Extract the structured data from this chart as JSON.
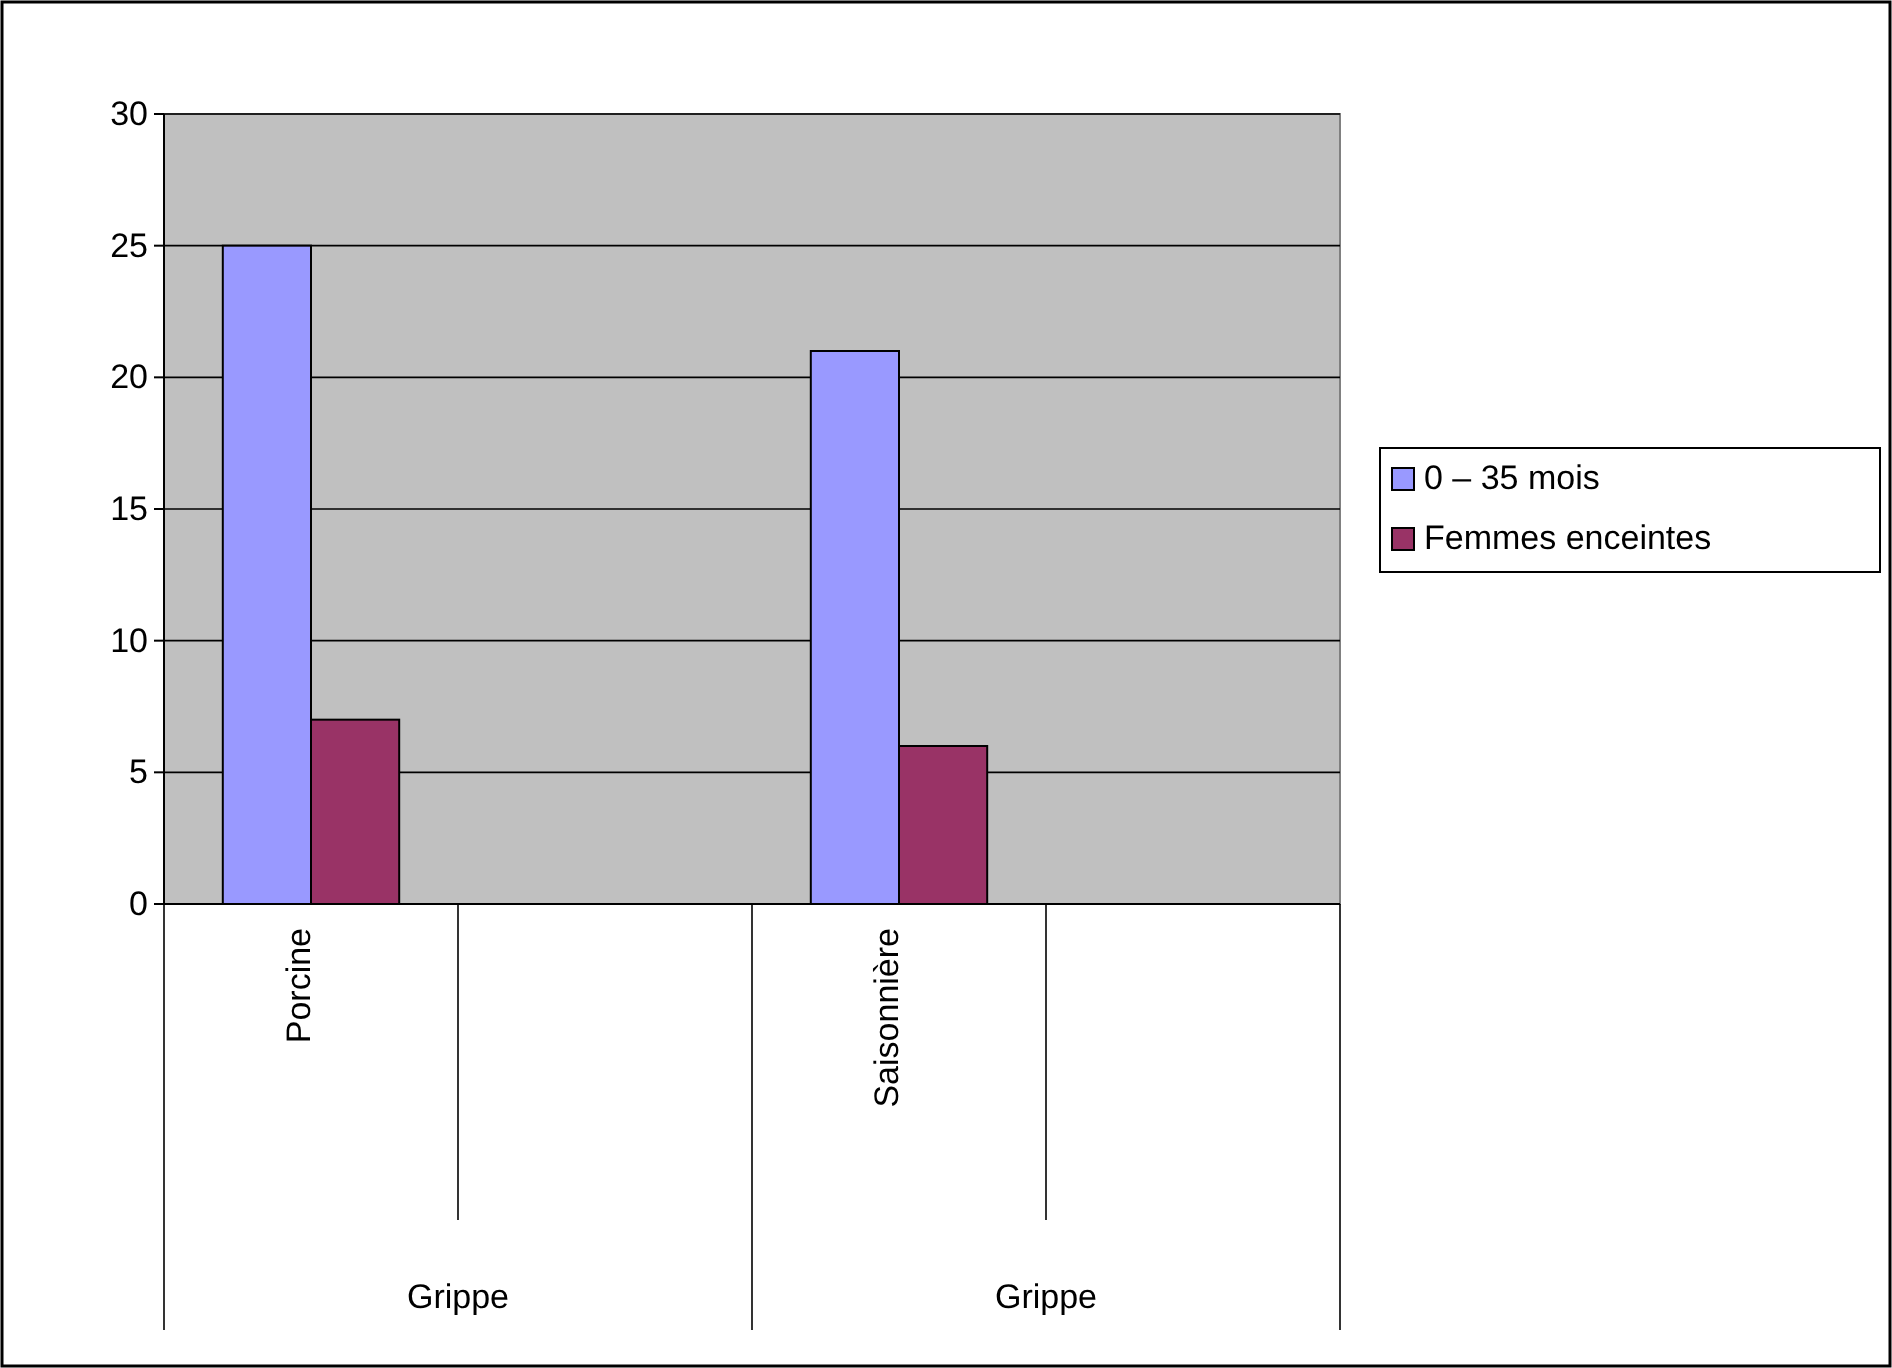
{
  "chart_data": {
    "type": "bar",
    "categories": [
      "Porcine",
      null,
      "Saisonnière",
      null
    ],
    "series": [
      {
        "name": "0 – 35 mois",
        "color": "#9999ff",
        "values": [
          25,
          null,
          21,
          null
        ]
      },
      {
        "name": "Femmes enceintes",
        "color": "#993366",
        "values": [
          7,
          null,
          6,
          null
        ]
      }
    ],
    "ylim": [
      0,
      30
    ],
    "yticks": [
      0,
      5,
      10,
      15,
      20,
      25,
      30
    ],
    "grid": "y",
    "legend": "right",
    "annotations": [
      "Grippe",
      "Grippe"
    ]
  }
}
